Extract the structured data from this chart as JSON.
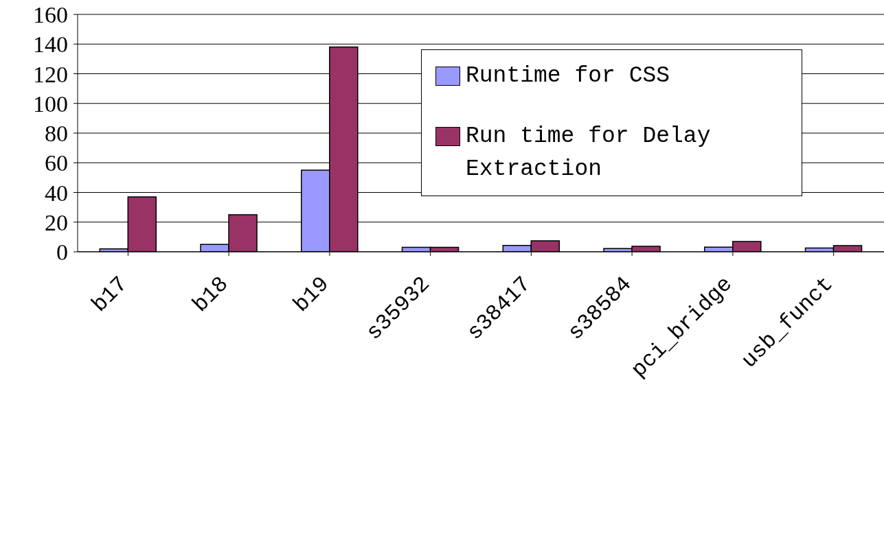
{
  "chart_data": {
    "type": "bar",
    "categories": [
      "b17",
      "b18",
      "b19",
      "s35932",
      "s38417",
      "s38584",
      "pci_bridge",
      "usb_funct"
    ],
    "series": [
      {
        "name": "Runtime for CSS",
        "color": "#9999ff",
        "values": [
          2,
          5,
          55,
          3,
          4.3,
          2.2,
          3.1,
          2.6
        ]
      },
      {
        "name": "Run time for Delay Extraction",
        "color": "#993366",
        "values": [
          37,
          25,
          138,
          3,
          7.4,
          3.7,
          6.9,
          4.2
        ]
      }
    ],
    "ylim": [
      0,
      160
    ],
    "yticks": [
      0,
      20,
      40,
      60,
      80,
      100,
      120,
      140,
      160
    ],
    "grid": "y",
    "legend": "top right"
  }
}
